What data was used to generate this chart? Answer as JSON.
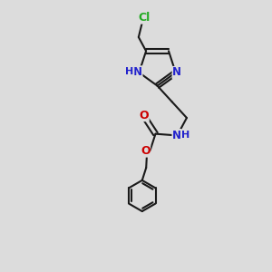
{
  "background_color": "#dcdcdc",
  "bond_color": "#1a1a1a",
  "atom_colors": {
    "N": "#2222cc",
    "O": "#cc0000",
    "Cl": "#22aa22",
    "H": "#2222cc",
    "C": "#1a1a1a"
  },
  "figsize": [
    3.0,
    3.0
  ],
  "dpi": 100
}
